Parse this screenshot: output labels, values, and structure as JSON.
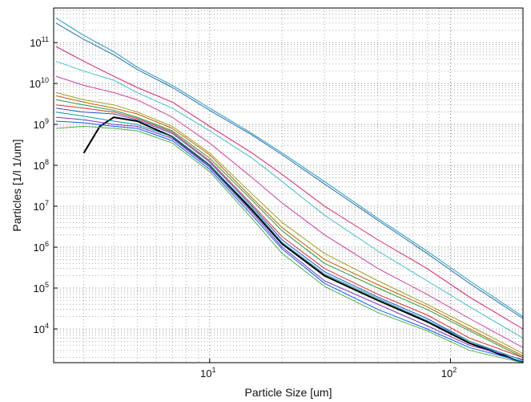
{
  "chart_data": {
    "type": "line",
    "title": "",
    "xlabel": "Particle Size [um]",
    "ylabel": "Particles   [1/l 1/um]",
    "x_scale": "log",
    "y_scale": "log",
    "xlim": [
      2.25,
      200
    ],
    "ylim": [
      1500,
      700000000000
    ],
    "grid": true,
    "legend": "none",
    "x_ticks": [
      {
        "value": 10,
        "base": "10",
        "exp": "1"
      },
      {
        "value": 100,
        "base": "10",
        "exp": "2"
      }
    ],
    "y_ticks": [
      {
        "value": 10000,
        "base": "10",
        "exp": "4"
      },
      {
        "value": 100000,
        "base": "10",
        "exp": "5"
      },
      {
        "value": 1000000,
        "base": "10",
        "exp": "6"
      },
      {
        "value": 10000000,
        "base": "10",
        "exp": "7"
      },
      {
        "value": 100000000,
        "base": "10",
        "exp": "8"
      },
      {
        "value": 1000000000,
        "base": "10",
        "exp": "9"
      },
      {
        "value": 10000000000,
        "base": "10",
        "exp": "10"
      },
      {
        "value": 100000000000,
        "base": "10",
        "exp": "11"
      }
    ],
    "series": [
      {
        "color": "#1f9fbf",
        "x": [
          2.3,
          3,
          4,
          5,
          7,
          10,
          15,
          20,
          30,
          50,
          80,
          120,
          200
        ],
        "y": [
          400000000000,
          150000000000,
          60000000000,
          25000000000,
          9000000000,
          2500000000,
          600000000,
          200000000,
          40000000,
          5000000,
          800000,
          150000,
          20000
        ]
      },
      {
        "color": "#2c6fb0",
        "x": [
          2.3,
          3,
          4,
          5,
          7,
          10,
          15,
          20,
          30,
          50,
          80,
          120,
          200
        ],
        "y": [
          300000000000,
          120000000000,
          50000000000,
          22000000000,
          8000000000,
          2200000000,
          550000000,
          180000000,
          35000000,
          4500000,
          700000,
          130000,
          18000
        ]
      },
      {
        "color": "#e0206a",
        "x": [
          2.3,
          3,
          4,
          5,
          7,
          10,
          15,
          20,
          30,
          50,
          80,
          120,
          200
        ],
        "y": [
          80000000000,
          35000000000,
          15000000000,
          8000000000,
          3500000000,
          900000000,
          200000000,
          60000000,
          10000000,
          1500000,
          300000,
          60000,
          10000
        ]
      },
      {
        "color": "#40c0d0",
        "x": [
          2.3,
          3,
          4,
          5,
          7,
          10,
          15,
          20,
          30,
          50,
          80,
          120,
          200
        ],
        "y": [
          35000000000,
          20000000000,
          12000000000,
          6000000000,
          2500000000,
          700000000,
          150000000,
          40000000,
          6000000,
          800000,
          150000,
          35000,
          6000
        ]
      },
      {
        "color": "#d040a0",
        "x": [
          2.3,
          3,
          4,
          5,
          7,
          10,
          15,
          20,
          30,
          50,
          80,
          120,
          200
        ],
        "y": [
          15000000000,
          9000000000,
          6000000000,
          4000000000,
          1500000000,
          350000000,
          50000000,
          12000000,
          2000000,
          300000,
          70000,
          18000,
          3500
        ]
      },
      {
        "color": "#a0a020",
        "x": [
          2.3,
          3,
          4,
          5,
          7,
          10,
          15,
          20,
          30,
          50,
          80,
          120,
          200
        ],
        "y": [
          6000000000,
          4000000000,
          3000000000,
          2000000000,
          900000000,
          200000000,
          20000000,
          4000000,
          700000,
          150000,
          40000,
          12000,
          2500
        ]
      },
      {
        "color": "#20a040",
        "x": [
          2.3,
          3,
          4,
          5,
          7,
          10,
          15,
          20,
          30,
          50,
          80,
          120,
          200
        ],
        "y": [
          4000000000,
          3000000000,
          2200000000,
          1500000000,
          700000000,
          150000000,
          14000000,
          2500000,
          400000,
          100000,
          30000,
          9000,
          2000
        ]
      },
      {
        "color": "#3050d0",
        "x": [
          2.3,
          3,
          4,
          5,
          7,
          10,
          15,
          20,
          30,
          50,
          80,
          120,
          200
        ],
        "y": [
          2500000000,
          2000000000,
          1800000000,
          1300000000,
          600000000,
          120000000,
          10000000,
          1500000,
          250000,
          60000,
          18000,
          5000,
          1500
        ]
      },
      {
        "color": "#000000",
        "x": [
          3,
          3.5,
          4,
          5,
          7,
          10,
          15,
          20,
          30,
          50,
          80,
          120,
          200
        ],
        "y": [
          200000000,
          900000000,
          1500000000,
          1200000000,
          500000000,
          100000000,
          8000000,
          1200000,
          200000,
          50000,
          15000,
          4500,
          1500
        ]
      },
      {
        "color": "#e03030",
        "x": [
          2.3,
          3,
          4,
          5,
          7,
          10,
          15,
          20,
          30,
          50,
          80,
          120,
          200
        ],
        "y": [
          3000000000,
          2500000000,
          2000000000,
          1400000000,
          650000000,
          130000000,
          11000000,
          1800000,
          300000,
          70000,
          22000,
          6000,
          2000
        ]
      },
      {
        "color": "#8030c0",
        "x": [
          2.3,
          3,
          4,
          5,
          7,
          10,
          15,
          20,
          30,
          50,
          80,
          120,
          200
        ],
        "y": [
          1500000000,
          1300000000,
          1000000000,
          900000000,
          450000000,
          90000000,
          7000000,
          1000000,
          150000,
          40000,
          12000,
          4000,
          1800
        ]
      },
      {
        "color": "#00a0a0",
        "x": [
          2.3,
          3,
          4,
          5,
          7,
          10,
          15,
          20,
          30,
          50,
          80,
          120,
          200
        ],
        "y": [
          2000000000,
          1600000000,
          1200000000,
          1000000000,
          500000000,
          100000000,
          9000000,
          1300000,
          220000,
          55000,
          16000,
          5000,
          1700
        ]
      },
      {
        "color": "#c06000",
        "x": [
          2.3,
          3,
          4,
          5,
          7,
          10,
          15,
          20,
          30,
          50,
          80,
          120,
          200
        ],
        "y": [
          5000000000,
          3500000000,
          2500000000,
          1800000000,
          800000000,
          180000000,
          16000000,
          3000000,
          500000,
          120000,
          35000,
          10000,
          2200
        ]
      },
      {
        "color": "#0060ff",
        "x": [
          2.3,
          3,
          4,
          5,
          7,
          10,
          15,
          20,
          30,
          50,
          80,
          120,
          200
        ],
        "y": [
          1200000000,
          1100000000,
          900000000,
          800000000,
          400000000,
          80000000,
          6000000,
          900000,
          130000,
          30000,
          10000,
          3500,
          1600
        ]
      },
      {
        "color": "#50b050",
        "x": [
          2.3,
          3,
          4,
          5,
          7,
          10,
          15,
          20,
          30,
          50,
          80,
          120,
          200
        ],
        "y": [
          800000000,
          900000000,
          800000000,
          700000000,
          350000000,
          70000000,
          5000000,
          700000,
          110000,
          25000,
          9000,
          3000,
          1500
        ]
      }
    ]
  }
}
